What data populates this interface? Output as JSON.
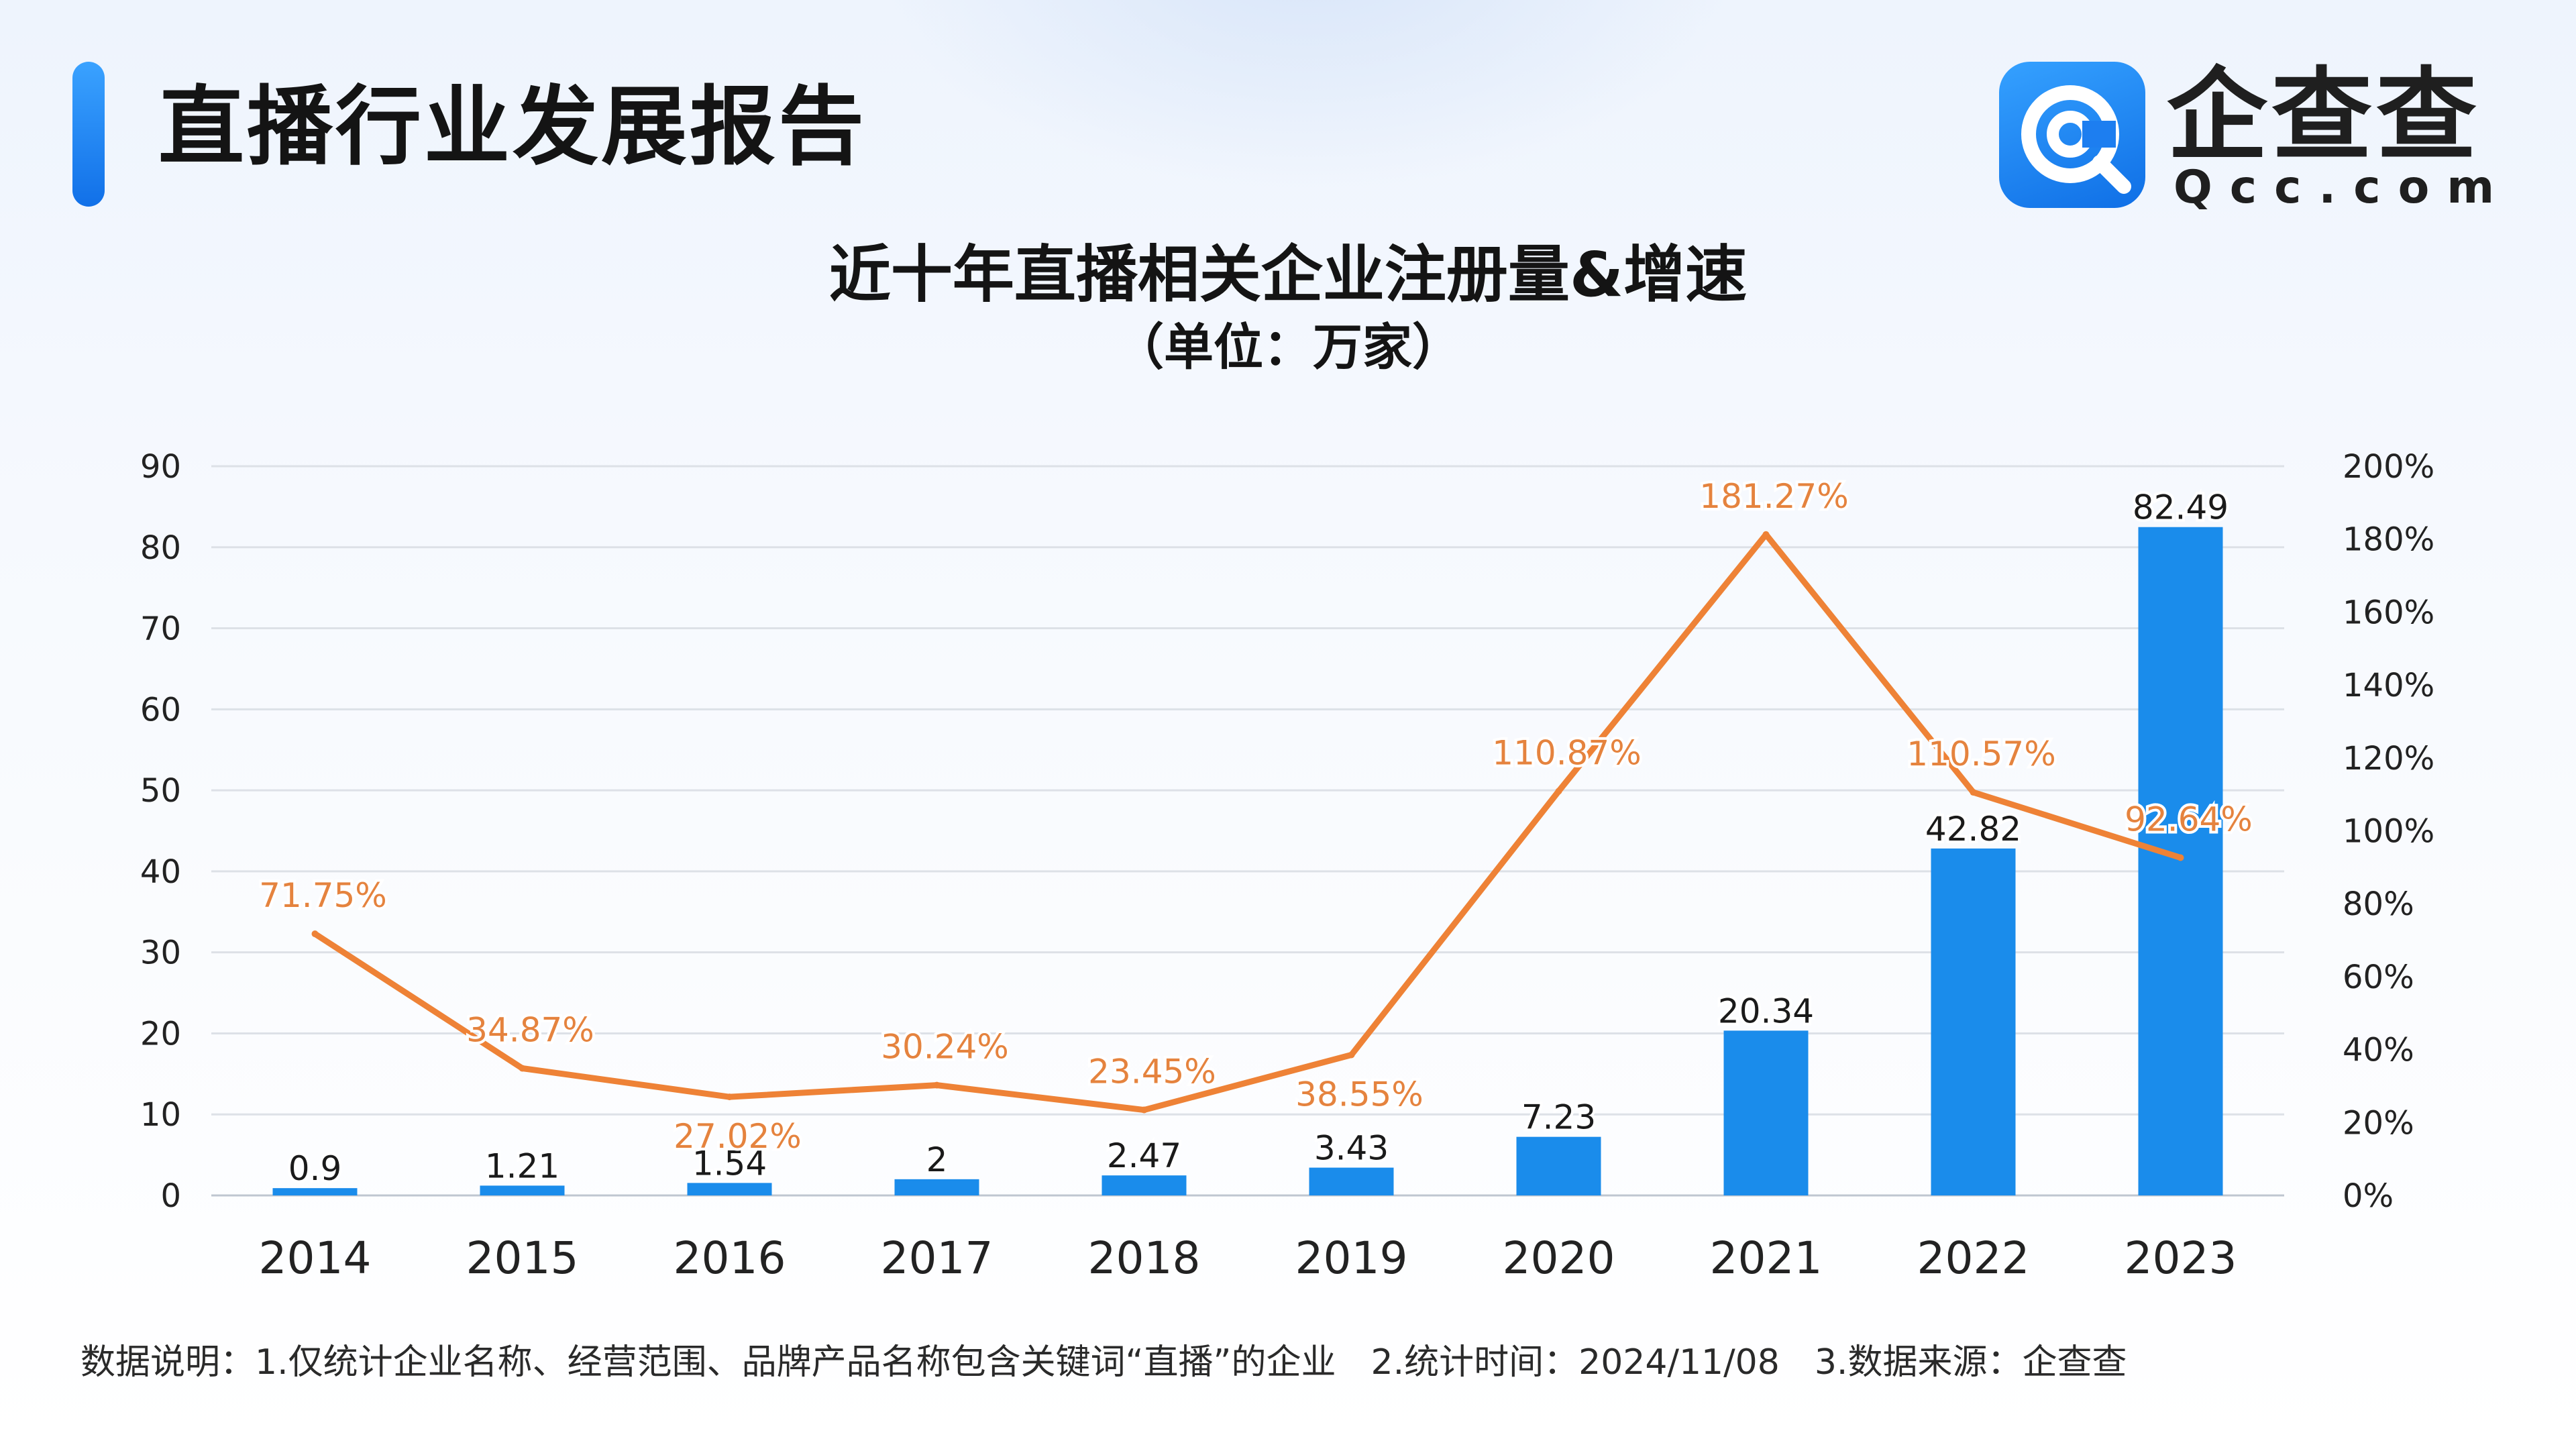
{
  "header": {
    "title": "直播行业发展报告"
  },
  "brand": {
    "name": "企查查",
    "domain": "Qcc.com",
    "logo_icon": "qcc-logo-icon",
    "logo_color": "#1676ee"
  },
  "chart_data": {
    "type": "bar",
    "title": "近十年直播相关企业注册量&增速",
    "subtitle": "（单位：万家）",
    "categories": [
      "2014",
      "2015",
      "2016",
      "2017",
      "2018",
      "2019",
      "2020",
      "2021",
      "2022",
      "2023"
    ],
    "bar_labels": [
      "0.9",
      "1.21",
      "1.54",
      "2",
      "2.47",
      "3.43",
      "7.23",
      "20.34",
      "42.82",
      "82.49"
    ],
    "line_labels": [
      "71.75%",
      "34.87%",
      "27.02%",
      "30.24%",
      "23.45%",
      "38.55%",
      "110.87%",
      "181.27%",
      "110.57%",
      "92.64%"
    ],
    "series": [
      {
        "type": "bar",
        "axis": "left",
        "color": "#1a8ceb",
        "values": [
          0.9,
          1.21,
          1.54,
          2,
          2.47,
          3.43,
          7.23,
          20.34,
          42.82,
          82.49
        ]
      },
      {
        "type": "line",
        "axis": "right",
        "color": "#ee8236",
        "values": [
          71.75,
          34.87,
          27.02,
          30.24,
          23.45,
          38.55,
          110.87,
          181.27,
          110.57,
          92.64
        ]
      }
    ],
    "y_left": {
      "min": 0,
      "max": 90,
      "ticks": [
        "0",
        "10",
        "20",
        "30",
        "40",
        "50",
        "60",
        "70",
        "80",
        "90"
      ]
    },
    "y_right": {
      "min": 0,
      "max": 200,
      "ticks": [
        "0%",
        "20%",
        "40%",
        "60%",
        "80%",
        "100%",
        "120%",
        "140%",
        "160%",
        "180%",
        "200%"
      ]
    },
    "grid": true,
    "legend": "none"
  },
  "footnote": {
    "note1": "数据说明：1.仅统计企业名称、经营范围、品牌产品名称包含关键词“直播”的企业",
    "note2": "2.统计时间：2024/11/08",
    "note3": "3.数据来源：企查查"
  }
}
